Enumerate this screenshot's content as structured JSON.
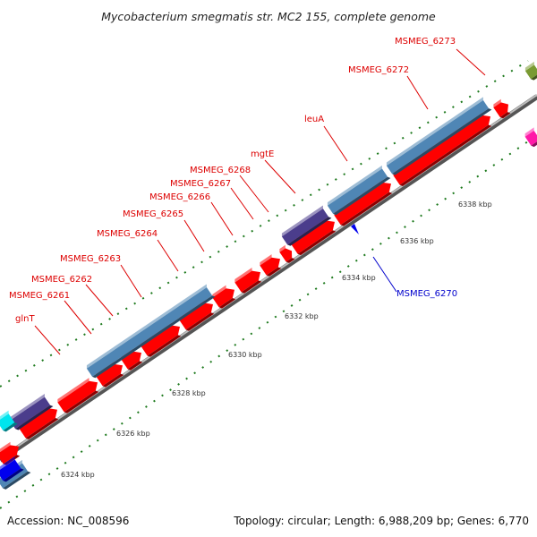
{
  "title": "Mycobacterium smegmatis str. MC2 155, complete genome",
  "footer": {
    "accession": "Accession: NC_008596",
    "summary": "Topology: circular; Length: 6,988,209 bp; Genes: 6,770"
  },
  "colors": {
    "forward_gene": "#ff0000",
    "rna_gene": "#4f86b5",
    "other_gene": "#4b3d8c",
    "reverse_gene": "#0000ee",
    "gc_skew_dots": "#1e7a1e",
    "backbone": "#777777",
    "label_forward": "#dd0000",
    "label_reverse": "#0000cc"
  },
  "gene_labels": [
    {
      "name": "MSMEG_6273",
      "strand": "forward"
    },
    {
      "name": "MSMEG_6272",
      "strand": "forward"
    },
    {
      "name": "leuA",
      "strand": "forward"
    },
    {
      "name": "mgtE",
      "strand": "forward"
    },
    {
      "name": "MSMEG_6268",
      "strand": "forward"
    },
    {
      "name": "MSMEG_6267",
      "strand": "forward"
    },
    {
      "name": "MSMEG_6266",
      "strand": "forward"
    },
    {
      "name": "MSMEG_6265",
      "strand": "forward"
    },
    {
      "name": "MSMEG_6264",
      "strand": "forward"
    },
    {
      "name": "MSMEG_6263",
      "strand": "forward"
    },
    {
      "name": "MSMEG_6262",
      "strand": "forward"
    },
    {
      "name": "MSMEG_6261",
      "strand": "forward"
    },
    {
      "name": "glnT",
      "strand": "forward"
    },
    {
      "name": "MSMEG_6270",
      "strand": "reverse"
    }
  ],
  "position_labels": [
    "6338 kbp",
    "6336 kbp",
    "6334 kbp",
    "6332 kbp",
    "6330 kbp",
    "6328 kbp",
    "6326 kbp",
    "6324 kbp"
  ]
}
